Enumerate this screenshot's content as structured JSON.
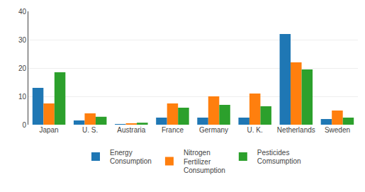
{
  "chart_data": {
    "type": "bar",
    "categories": [
      "Japan",
      "U. S.",
      "Austraria",
      "France",
      "Germany",
      "U. K.",
      "Netherlands",
      "Sweden"
    ],
    "series": [
      {
        "name": "Energy\nConsumption",
        "values": [
          13.0,
          1.5,
          0.1,
          2.5,
          2.5,
          2.5,
          32.0,
          2.0
        ]
      },
      {
        "name": "Nitrogen\nFertilizer\nConsumption",
        "values": [
          7.5,
          4.0,
          0.5,
          7.5,
          10.0,
          11.0,
          22.0,
          5.0
        ]
      },
      {
        "name": "Pesticides\nComsumption",
        "values": [
          18.5,
          2.8,
          0.7,
          6.0,
          7.0,
          6.5,
          19.5,
          2.5
        ]
      }
    ],
    "ylim": [
      0,
      40
    ],
    "yticks": [
      0,
      10,
      20,
      30,
      40
    ],
    "grid": true,
    "legend": "bottom"
  }
}
